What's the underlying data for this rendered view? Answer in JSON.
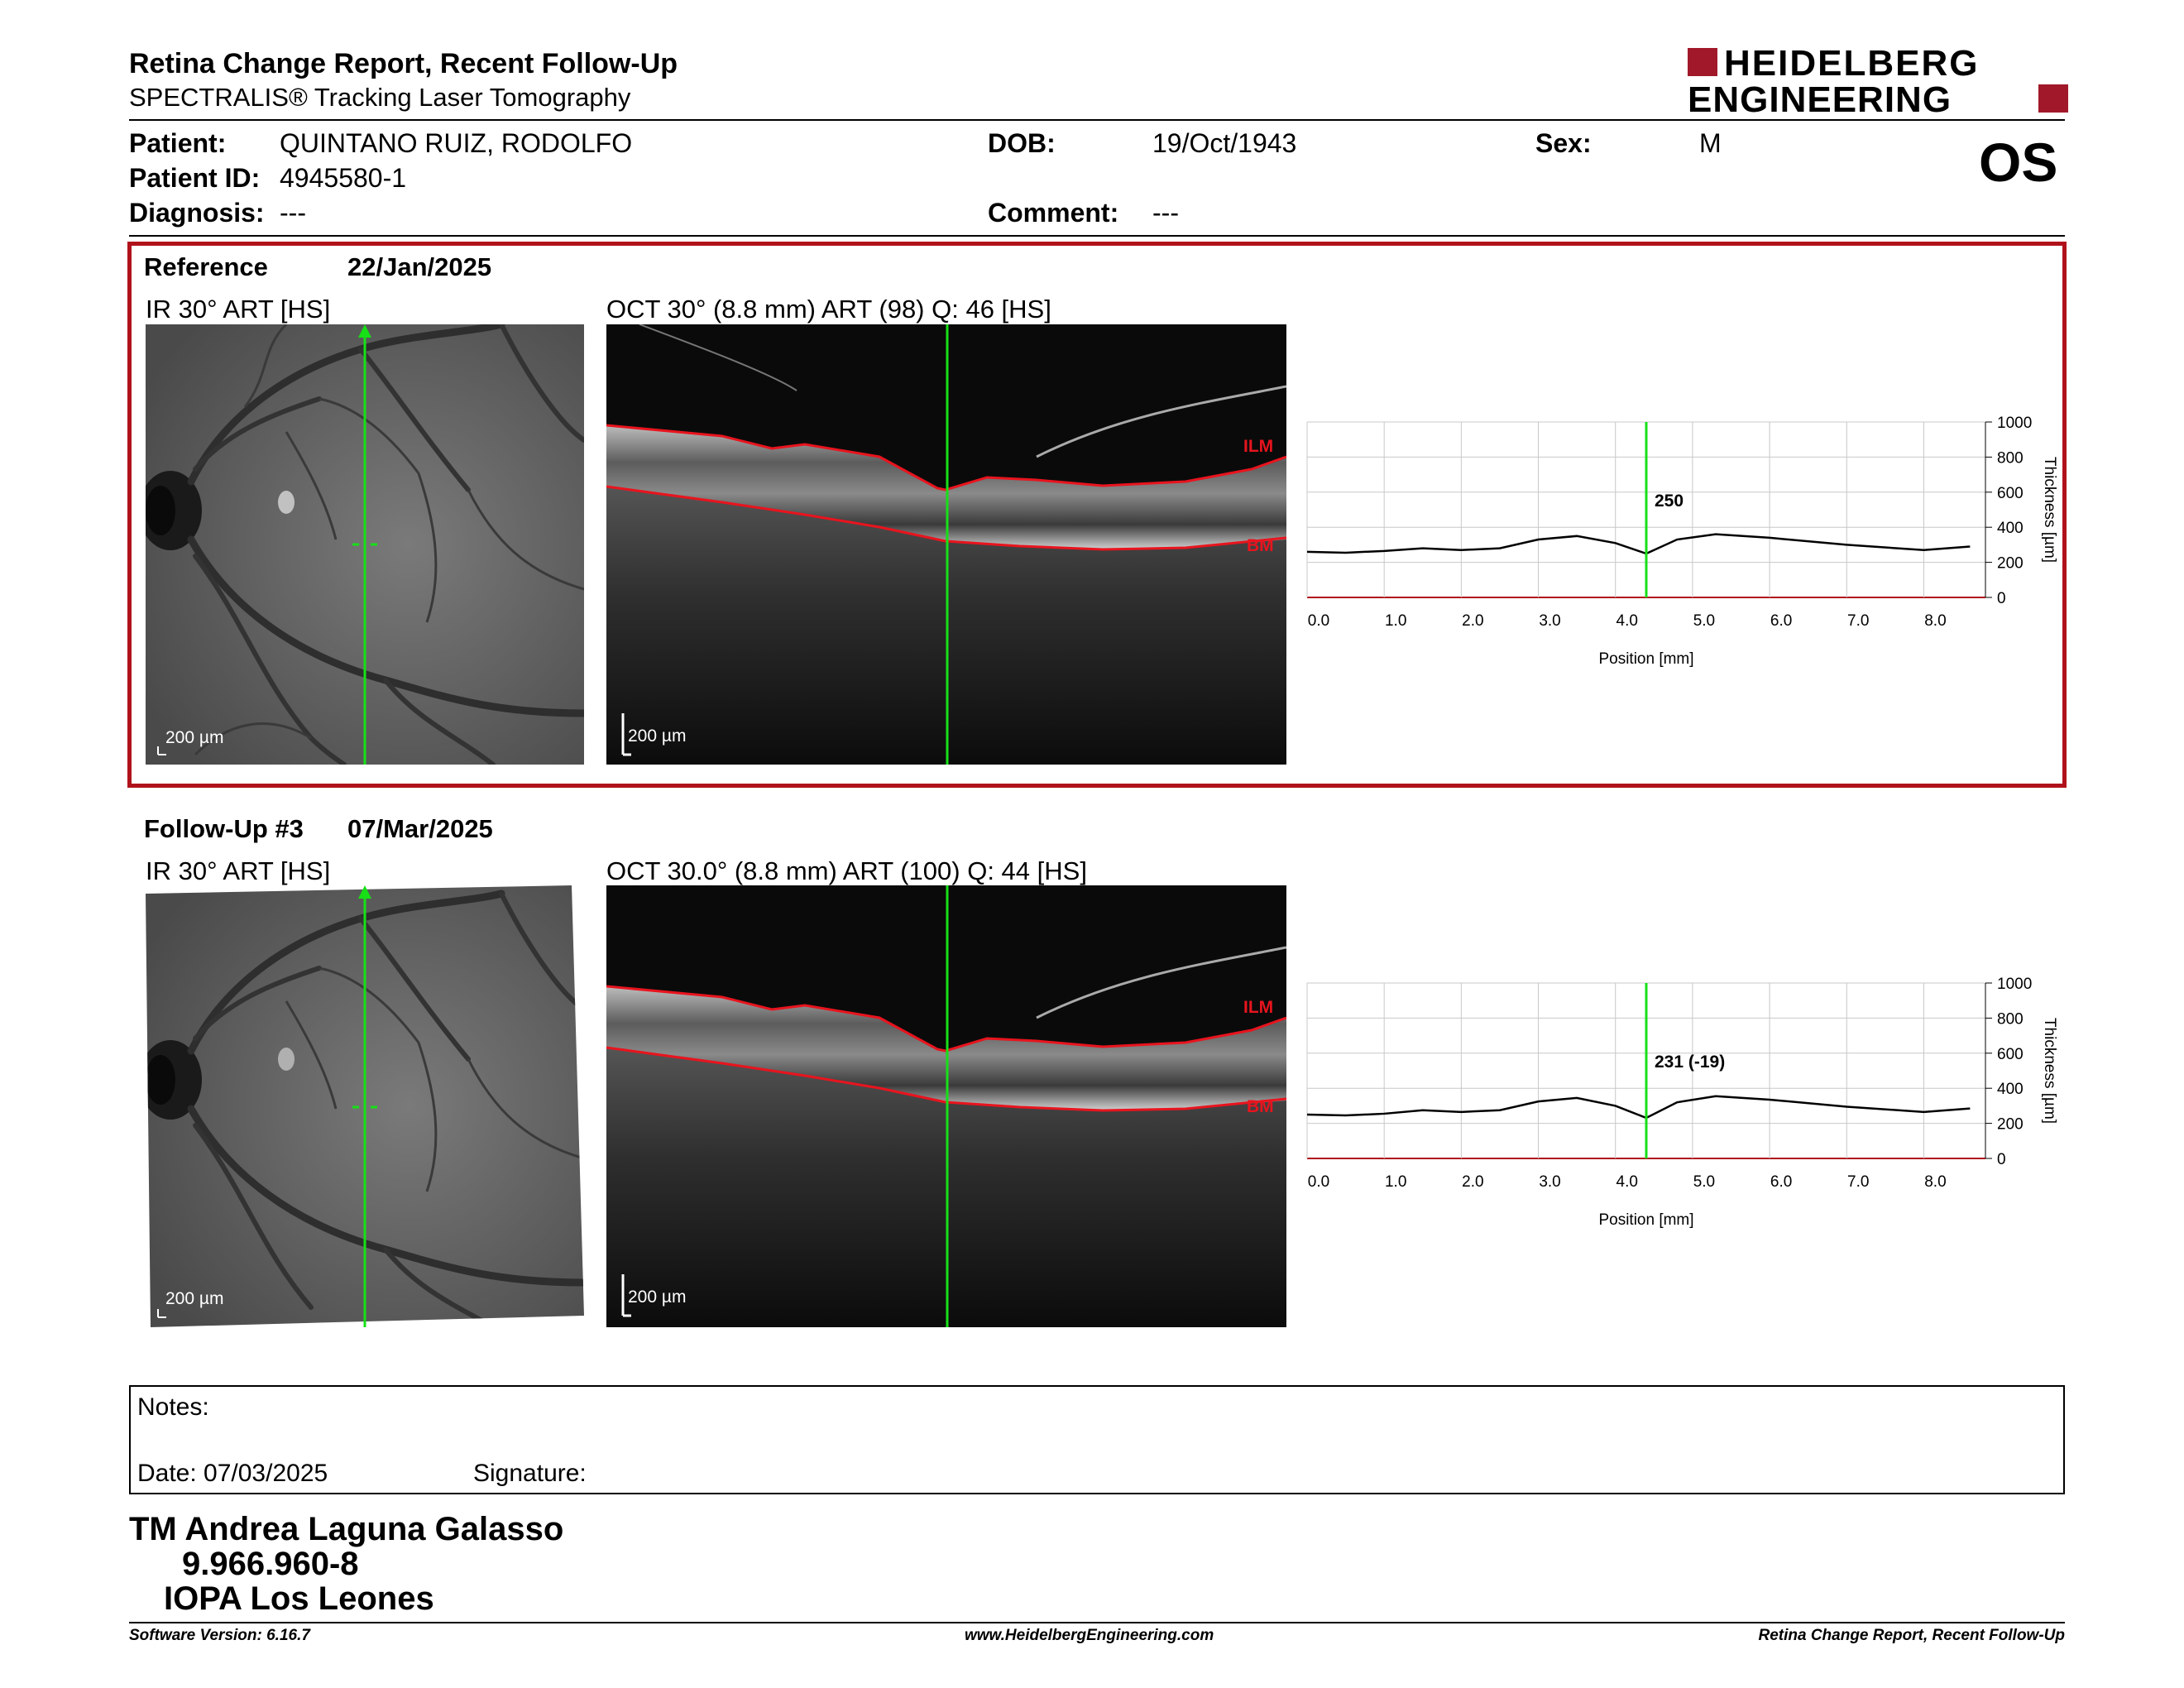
{
  "header": {
    "title": "Retina Change Report, Recent Follow-Up",
    "subtitle": "SPECTRALIS® Tracking Laser Tomography",
    "logo_line1": "HEIDELBERG",
    "logo_line2": "ENGINEERING",
    "eye": "OS"
  },
  "patient": {
    "name_label": "Patient:",
    "name": "QUINTANO RUIZ, RODOLFO",
    "id_label": "Patient ID:",
    "id": "4945580-1",
    "diagnosis_label": "Diagnosis:",
    "diagnosis": "---",
    "dob_label": "DOB:",
    "dob": "19/Oct/1943",
    "comment_label": "Comment:",
    "comment": "---",
    "sex_label": "Sex:",
    "sex": "M"
  },
  "reference": {
    "label": "Reference",
    "date": "22/Jan/2025",
    "ir_title": "IR 30° ART [HS]",
    "oct_title": "OCT 30° (8.8 mm) ART (98) Q: 46 [HS]",
    "scale": "200 µm",
    "ilm": "ILM",
    "bm": "BM",
    "value_label": "250"
  },
  "followup": {
    "label": "Follow-Up #3",
    "date": "07/Mar/2025",
    "ir_title": "IR 30° ART [HS]",
    "oct_title": "OCT 30.0° (8.8 mm) ART (100) Q: 44 [HS]",
    "scale": "200 µm",
    "ilm": "ILM",
    "bm": "BM",
    "value_label": "231 (-19)"
  },
  "chart_data": [
    {
      "type": "line",
      "xlabel": "Position [mm]",
      "ylabel": "Thickness [µm]",
      "xlim": [
        0,
        8.8
      ],
      "ylim": [
        0,
        1000
      ],
      "xticks": [
        "0.0",
        "1.0",
        "2.0",
        "3.0",
        "4.0",
        "5.0",
        "6.0",
        "7.0",
        "8.0"
      ],
      "yticks": [
        "0",
        "200",
        "400",
        "600",
        "800",
        "1000"
      ],
      "marker_x": 4.4,
      "marker_label": "250",
      "series": [
        {
          "x": [
            0,
            0.5,
            1,
            1.5,
            2,
            2.5,
            3,
            3.5,
            4,
            4.4,
            4.8,
            5.3,
            6,
            7,
            8,
            8.6
          ],
          "y": [
            260,
            255,
            265,
            280,
            270,
            280,
            330,
            350,
            310,
            250,
            330,
            360,
            340,
            300,
            270,
            290
          ]
        }
      ]
    },
    {
      "type": "line",
      "xlabel": "Position [mm]",
      "ylabel": "Thickness [µm]",
      "xlim": [
        0,
        8.8
      ],
      "ylim": [
        0,
        1000
      ],
      "xticks": [
        "0.0",
        "1.0",
        "2.0",
        "3.0",
        "4.0",
        "5.0",
        "6.0",
        "7.0",
        "8.0"
      ],
      "yticks": [
        "0",
        "200",
        "400",
        "600",
        "800",
        "1000"
      ],
      "marker_x": 4.4,
      "marker_label": "231 (-19)",
      "series": [
        {
          "x": [
            0,
            0.5,
            1,
            1.5,
            2,
            2.5,
            3,
            3.5,
            4,
            4.4,
            4.8,
            5.3,
            6,
            7,
            8,
            8.6
          ],
          "y": [
            250,
            245,
            255,
            275,
            265,
            275,
            325,
            345,
            300,
            231,
            320,
            355,
            335,
            295,
            265,
            285
          ]
        }
      ]
    }
  ],
  "notes": {
    "label": "Notes:",
    "date_label": "Date: 07/03/2025",
    "signature_label": "Signature:"
  },
  "stamp": {
    "line1": "TM Andrea Laguna Galasso",
    "line2": "9.966.960-8",
    "line3": "IOPA Los Leones"
  },
  "footer": {
    "left": "Software Version: 6.16.7",
    "center": "www.HeidelbergEngineering.com",
    "right": "Retina Change Report, Recent Follow-Up"
  },
  "colors": {
    "accent": "#b0121b",
    "green": "#17e017",
    "red_line": "#e8141e"
  }
}
